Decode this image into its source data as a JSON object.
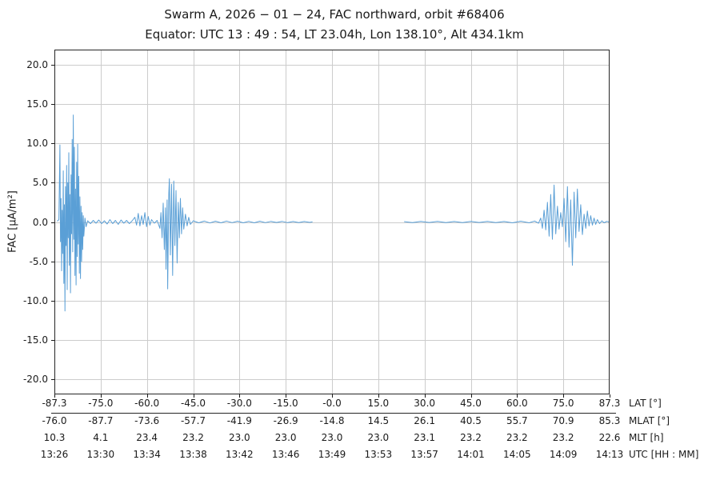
{
  "title": "Swarm A,  2026 − 01 − 24,  FAC northward,  orbit #68406",
  "subtitle": "Equator:  UTC 13 : 49 : 54,  LT 23.04h,  Lon 138.10°,  Alt 434.1km",
  "chart_data": {
    "type": "line",
    "title": "Swarm A, 2026-01-24, FAC northward, orbit #68406",
    "subtitle": "Equator: UTC 13:49:54, LT 23.04h, Lon 138.10°, Alt 434.1km",
    "ylabel": "FAC [μA/m²]",
    "ylim": [
      -21.9,
      21.9
    ],
    "yticks": [
      "20.0",
      "15.0",
      "10.0",
      "5.0",
      "0.0",
      "-5.0",
      "-10.0",
      "-15.0",
      "-20.0"
    ],
    "ytick_values": [
      20,
      15,
      10,
      5,
      0,
      -5,
      -10,
      -15,
      -20
    ],
    "grid": true,
    "legend": "none",
    "line_color": "#5a9fd6",
    "grid_color": "#cccccc",
    "axis_color": "#262626",
    "x_axis_rows": [
      {
        "label": "LAT [°]",
        "values": [
          "-87.3",
          "-75.0",
          "-60.0",
          "-45.0",
          "-30.0",
          "-15.0",
          "-0.0",
          "15.0",
          "30.0",
          "45.0",
          "60.0",
          "75.0",
          "87.3"
        ]
      },
      {
        "label": "MLAT [°]",
        "values": [
          "-76.0",
          "-87.7",
          "-73.6",
          "-57.7",
          "-41.9",
          "-26.9",
          "-14.8",
          "14.5",
          "26.1",
          "40.5",
          "55.7",
          "70.9",
          "85.3"
        ]
      },
      {
        "label": "MLT [h]",
        "values": [
          "10.3",
          "4.1",
          "23.4",
          "23.2",
          "23.0",
          "23.0",
          "23.0",
          "23.0",
          "23.1",
          "23.2",
          "23.2",
          "23.2",
          "22.6"
        ]
      },
      {
        "label": "UTC [HH : MM]",
        "values": [
          "13:26",
          "13:30",
          "13:34",
          "13:38",
          "13:42",
          "13:46",
          "13:49",
          "13:53",
          "13:57",
          "14:01",
          "14:05",
          "14:09",
          "14:13"
        ]
      }
    ],
    "series": [
      {
        "name": "FAC northward",
        "unit": "μA/m²",
        "x_units": "fraction of time axis (13:26 → 14:13 UTC)",
        "segments": [
          [
            [
              0.005,
              0.1
            ],
            [
              0.008,
              0.3
            ],
            [
              0.009,
              4.5
            ],
            [
              0.01,
              9.8
            ],
            [
              0.011,
              -2.5
            ],
            [
              0.012,
              3.0
            ],
            [
              0.013,
              -6.2
            ],
            [
              0.014,
              1.5
            ],
            [
              0.015,
              -4.0
            ],
            [
              0.016,
              6.5
            ],
            [
              0.017,
              -7.8
            ],
            [
              0.018,
              2.2
            ],
            [
              0.019,
              -11.3
            ],
            [
              0.02,
              4.5
            ],
            [
              0.021,
              -3.0
            ],
            [
              0.022,
              7.2
            ],
            [
              0.023,
              -8.6
            ],
            [
              0.024,
              5.0
            ],
            [
              0.025,
              -2.0
            ],
            [
              0.026,
              8.8
            ],
            [
              0.027,
              -5.5
            ],
            [
              0.028,
              3.5
            ],
            [
              0.029,
              -9.0
            ],
            [
              0.03,
              6.0
            ],
            [
              0.031,
              -1.5
            ],
            [
              0.032,
              10.5
            ],
            [
              0.033,
              -3.8
            ],
            [
              0.034,
              13.6
            ],
            [
              0.035,
              -2.2
            ],
            [
              0.036,
              9.5
            ],
            [
              0.037,
              -6.8
            ],
            [
              0.038,
              4.2
            ],
            [
              0.039,
              -8.0
            ],
            [
              0.04,
              7.6
            ],
            [
              0.041,
              -4.4
            ],
            [
              0.042,
              9.9
            ],
            [
              0.043,
              -2.8
            ],
            [
              0.044,
              5.8
            ],
            [
              0.045,
              -6.5
            ],
            [
              0.046,
              3.2
            ],
            [
              0.047,
              -7.2
            ],
            [
              0.048,
              2.0
            ],
            [
              0.049,
              -5.0
            ],
            [
              0.05,
              1.2
            ],
            [
              0.051,
              -3.5
            ],
            [
              0.052,
              0.8
            ],
            [
              0.053,
              -1.8
            ],
            [
              0.055,
              0.5
            ],
            [
              0.057,
              -0.6
            ],
            [
              0.06,
              0.15
            ],
            [
              0.065,
              -0.2
            ],
            [
              0.07,
              0.2
            ],
            [
              0.075,
              -0.15
            ],
            [
              0.08,
              0.25
            ],
            [
              0.085,
              -0.2
            ],
            [
              0.09,
              0.15
            ],
            [
              0.095,
              -0.25
            ],
            [
              0.1,
              0.3
            ],
            [
              0.105,
              -0.2
            ],
            [
              0.11,
              0.2
            ],
            [
              0.115,
              -0.3
            ],
            [
              0.12,
              0.25
            ],
            [
              0.125,
              -0.15
            ],
            [
              0.13,
              0.2
            ],
            [
              0.135,
              -0.2
            ],
            [
              0.14,
              0.15
            ],
            [
              0.145,
              0.6
            ],
            [
              0.148,
              -0.4
            ],
            [
              0.151,
              1.1
            ],
            [
              0.154,
              -0.5
            ],
            [
              0.157,
              0.8
            ],
            [
              0.16,
              -0.3
            ],
            [
              0.163,
              1.2
            ],
            [
              0.166,
              -0.6
            ],
            [
              0.169,
              0.7
            ],
            [
              0.172,
              -0.4
            ],
            [
              0.175,
              0.3
            ],
            [
              0.18,
              -0.15
            ],
            [
              0.185,
              0.2
            ],
            [
              0.19,
              -0.8
            ],
            [
              0.192,
              1.2
            ],
            [
              0.194,
              -2.0
            ],
            [
              0.196,
              2.4
            ],
            [
              0.198,
              -3.5
            ],
            [
              0.2,
              1.8
            ],
            [
              0.201,
              -6.0
            ],
            [
              0.203,
              2.8
            ],
            [
              0.204,
              -8.5
            ],
            [
              0.206,
              3.6
            ],
            [
              0.207,
              5.5
            ],
            [
              0.209,
              -4.2
            ],
            [
              0.211,
              4.8
            ],
            [
              0.213,
              -6.8
            ],
            [
              0.215,
              5.2
            ],
            [
              0.217,
              -3.0
            ],
            [
              0.219,
              4.0
            ],
            [
              0.221,
              -5.2
            ],
            [
              0.223,
              2.5
            ],
            [
              0.225,
              -2.0
            ],
            [
              0.227,
              3.0
            ],
            [
              0.229,
              -1.5
            ],
            [
              0.231,
              1.8
            ],
            [
              0.233,
              -0.9
            ],
            [
              0.236,
              1.0
            ],
            [
              0.239,
              -0.5
            ],
            [
              0.242,
              0.6
            ],
            [
              0.245,
              -0.3
            ],
            [
              0.25,
              0.15
            ],
            [
              0.26,
              -0.1
            ],
            [
              0.27,
              0.12
            ],
            [
              0.28,
              -0.12
            ],
            [
              0.29,
              0.1
            ],
            [
              0.3,
              -0.1
            ],
            [
              0.31,
              0.12
            ],
            [
              0.32,
              -0.08
            ],
            [
              0.33,
              0.1
            ],
            [
              0.34,
              -0.1
            ],
            [
              0.35,
              0.08
            ],
            [
              0.36,
              -0.1
            ],
            [
              0.37,
              0.1
            ],
            [
              0.38,
              -0.08
            ],
            [
              0.39,
              0.08
            ],
            [
              0.4,
              -0.06
            ],
            [
              0.41,
              0.08
            ],
            [
              0.42,
              -0.08
            ],
            [
              0.43,
              0.06
            ],
            [
              0.44,
              -0.08
            ],
            [
              0.45,
              0.06
            ],
            [
              0.46,
              -0.05
            ],
            [
              0.465,
              0.03
            ]
          ],
          [
            [
              0.63,
              0.05
            ],
            [
              0.645,
              -0.08
            ],
            [
              0.66,
              0.08
            ],
            [
              0.675,
              -0.06
            ],
            [
              0.69,
              0.08
            ],
            [
              0.705,
              -0.08
            ],
            [
              0.72,
              0.06
            ],
            [
              0.735,
              -0.08
            ],
            [
              0.75,
              0.08
            ],
            [
              0.765,
              -0.06
            ],
            [
              0.78,
              0.08
            ],
            [
              0.795,
              -0.08
            ],
            [
              0.81,
              0.06
            ],
            [
              0.825,
              -0.1
            ],
            [
              0.84,
              0.1
            ],
            [
              0.855,
              -0.1
            ],
            [
              0.865,
              0.12
            ],
            [
              0.872,
              -0.15
            ],
            [
              0.876,
              0.5
            ],
            [
              0.879,
              -0.8
            ],
            [
              0.882,
              1.5
            ],
            [
              0.885,
              -1.0
            ],
            [
              0.888,
              2.5
            ],
            [
              0.891,
              -1.8
            ],
            [
              0.894,
              3.5
            ],
            [
              0.897,
              -2.2
            ],
            [
              0.9,
              4.7
            ],
            [
              0.903,
              -1.5
            ],
            [
              0.906,
              2.0
            ],
            [
              0.909,
              -0.9
            ],
            [
              0.912,
              1.2
            ],
            [
              0.915,
              -0.6
            ],
            [
              0.918,
              3.0
            ],
            [
              0.921,
              -2.5
            ],
            [
              0.924,
              4.5
            ],
            [
              0.927,
              -3.2
            ],
            [
              0.93,
              2.8
            ],
            [
              0.933,
              -5.5
            ],
            [
              0.936,
              3.8
            ],
            [
              0.939,
              -2.0
            ],
            [
              0.942,
              4.2
            ],
            [
              0.945,
              -1.2
            ],
            [
              0.948,
              2.2
            ],
            [
              0.951,
              -1.6
            ],
            [
              0.954,
              1.0
            ],
            [
              0.957,
              -0.8
            ],
            [
              0.96,
              1.4
            ],
            [
              0.963,
              -0.5
            ],
            [
              0.966,
              0.8
            ],
            [
              0.969,
              -0.4
            ],
            [
              0.972,
              0.5
            ],
            [
              0.975,
              -0.3
            ],
            [
              0.978,
              0.3
            ],
            [
              0.982,
              -0.2
            ],
            [
              0.986,
              0.15
            ],
            [
              0.99,
              -0.1
            ],
            [
              0.995,
              0.08
            ],
            [
              1.0,
              0.0
            ]
          ]
        ]
      }
    ]
  }
}
